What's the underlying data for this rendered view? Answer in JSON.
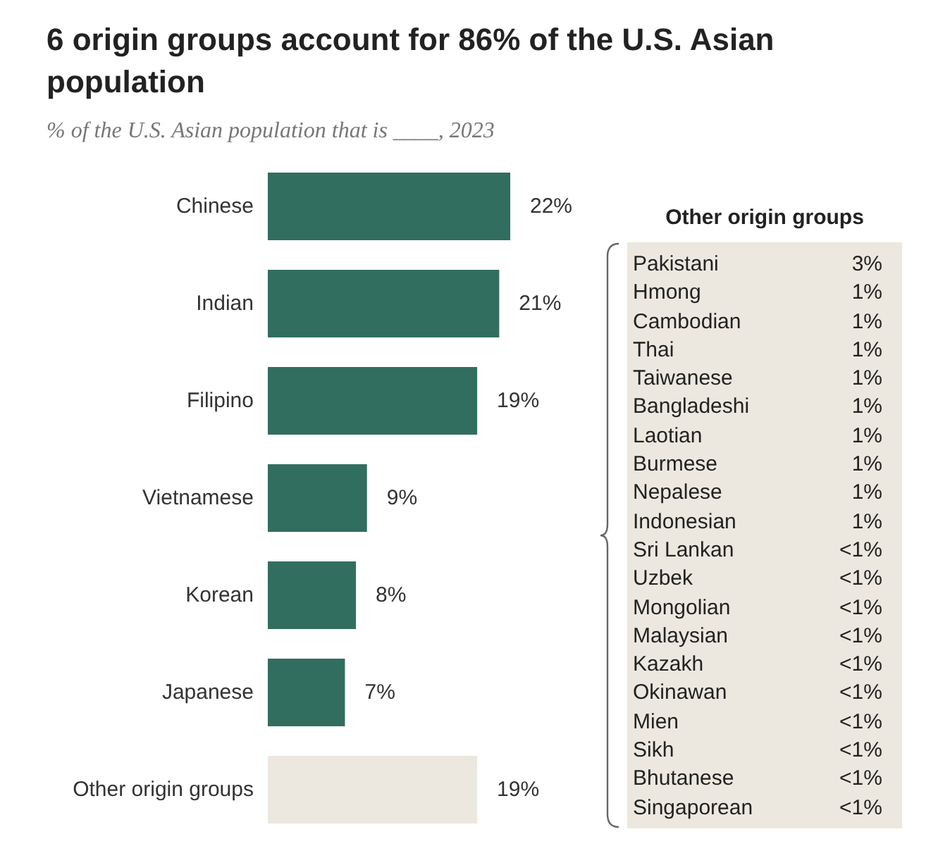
{
  "chart_data": [
    {
      "type": "bar",
      "orientation": "horizontal",
      "title": "6 origin groups account for 86% of the U.S. Asian population",
      "subtitle": "% of the U.S. Asian population that is ____, 2023",
      "categories": [
        "Chinese",
        "Indian",
        "Filipino",
        "Vietnamese",
        "Korean",
        "Japanese",
        "Other origin groups"
      ],
      "values": [
        22,
        21,
        19,
        9,
        8,
        7,
        19
      ],
      "colors": [
        "#316e5f",
        "#316e5f",
        "#316e5f",
        "#316e5f",
        "#316e5f",
        "#316e5f",
        "#ece8df"
      ],
      "value_labels": [
        "22%",
        "21%",
        "19%",
        "9%",
        "8%",
        "7%",
        "19%"
      ]
    },
    {
      "type": "other",
      "title": "Other origin groups",
      "categories": [
        "Pakistani",
        "Hmong",
        "Cambodian",
        "Thai",
        "Taiwanese",
        "Bangladeshi",
        "Laotian",
        "Burmese",
        "Nepalese",
        "Indonesian",
        "Sri Lankan",
        "Uzbek",
        "Mongolian",
        "Malaysian",
        "Kazakh",
        "Okinawan",
        "Mien",
        "Sikh",
        "Bhutanese",
        "Singaporean"
      ],
      "value_labels": [
        "3%",
        "1%",
        "1%",
        "1%",
        "1%",
        "1%",
        "1%",
        "1%",
        "1%",
        "1%",
        "<1%",
        "<1%",
        "<1%",
        "<1%",
        "<1%",
        "<1%",
        "<1%",
        "<1%",
        "<1%",
        "<1%"
      ]
    }
  ]
}
